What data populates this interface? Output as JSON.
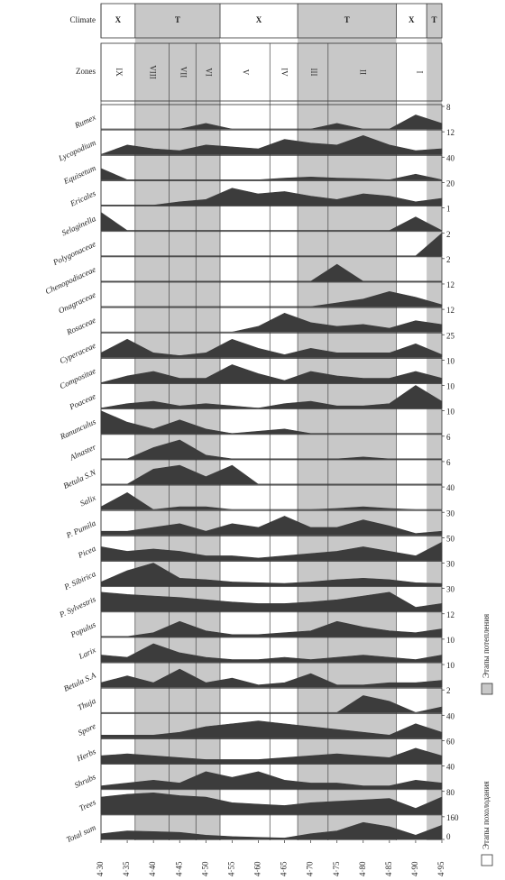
{
  "chart_data": {
    "type": "area",
    "climate_label": "Climate",
    "zones_label": "Zones",
    "x": [
      4.3,
      4.35,
      4.4,
      4.45,
      4.5,
      4.55,
      4.6,
      4.65,
      4.7,
      4.75,
      4.8,
      4.85,
      4.9,
      4.95
    ],
    "xlim": [
      4.3,
      4.95
    ],
    "xticks": [
      {
        "value": 4.3,
        "label": "4·30"
      },
      {
        "value": 4.35,
        "label": "4·35"
      },
      {
        "value": 4.4,
        "label": "4·40"
      },
      {
        "value": 4.45,
        "label": "4·45"
      },
      {
        "value": 4.5,
        "label": "4·50"
      },
      {
        "value": 4.55,
        "label": "4·55"
      },
      {
        "value": 4.6,
        "label": "4·60"
      },
      {
        "value": 4.65,
        "label": "4·65"
      },
      {
        "value": 4.7,
        "label": "4·70"
      },
      {
        "value": 4.75,
        "label": "4·75"
      },
      {
        "value": 4.8,
        "label": "4·80"
      },
      {
        "value": 4.85,
        "label": "4·85"
      },
      {
        "value": 4.9,
        "label": "4·90"
      },
      {
        "value": 4.95,
        "label": "4·95"
      }
    ],
    "area_color": "#3c3c3c",
    "warm_color": "#c8c8c8",
    "climate": [
      {
        "label": "X",
        "start": 4.3,
        "end": 4.365,
        "warm": false
      },
      {
        "label": "T",
        "start": 4.365,
        "end": 4.527,
        "warm": true
      },
      {
        "label": "X",
        "start": 4.527,
        "end": 4.675,
        "warm": false
      },
      {
        "label": "T",
        "start": 4.675,
        "end": 4.863,
        "warm": true
      },
      {
        "label": "X",
        "start": 4.863,
        "end": 4.921,
        "warm": false
      },
      {
        "label": "T",
        "start": 4.921,
        "end": 4.95,
        "warm": true
      }
    ],
    "zones": [
      {
        "label": "IX",
        "start": 4.3,
        "end": 4.365
      },
      {
        "label": "VIII",
        "start": 4.365,
        "end": 4.43
      },
      {
        "label": "VII",
        "start": 4.43,
        "end": 4.481
      },
      {
        "label": "VI",
        "start": 4.481,
        "end": 4.527
      },
      {
        "label": "V",
        "start": 4.527,
        "end": 4.622
      },
      {
        "label": "IV",
        "start": 4.622,
        "end": 4.675
      },
      {
        "label": "III",
        "start": 4.675,
        "end": 4.733
      },
      {
        "label": "II",
        "start": 4.733,
        "end": 4.863
      },
      {
        "label": "I",
        "start": 4.863,
        "end": 4.95
      }
    ],
    "legend": [
      {
        "label": "Этапы похолодания",
        "warm": false
      },
      {
        "label": "Этапы потепления",
        "warm": true
      }
    ],
    "series": [
      {
        "name": "Rumex",
        "ylim": [
          0,
          8
        ],
        "yticks": [
          8
        ],
        "values": [
          0,
          0,
          0,
          0,
          2,
          0,
          0,
          0,
          0,
          2,
          0,
          0,
          5,
          2
        ]
      },
      {
        "name": "Lycopodium",
        "ylim": [
          0,
          12
        ],
        "yticks": [
          12
        ],
        "values": [
          0,
          5,
          3,
          2,
          5,
          4,
          3,
          8,
          6,
          5,
          10,
          5,
          2,
          3
        ]
      },
      {
        "name": "Equisetum",
        "ylim": [
          0,
          40
        ],
        "yticks": [
          40
        ],
        "values": [
          20,
          0,
          0,
          0,
          0,
          0,
          0,
          3,
          5,
          3,
          2,
          0,
          10,
          0
        ]
      },
      {
        "name": "Ericales",
        "ylim": [
          0,
          20
        ],
        "yticks": [
          20
        ],
        "values": [
          0,
          0,
          0,
          3,
          5,
          15,
          10,
          12,
          8,
          5,
          10,
          8,
          3,
          6
        ]
      },
      {
        "name": "Selaginella",
        "ylim": [
          0,
          1
        ],
        "yticks": [
          1
        ],
        "values": [
          0.8,
          0,
          0,
          0,
          0,
          0,
          0,
          0,
          0,
          0,
          0,
          0,
          0.6,
          0
        ]
      },
      {
        "name": "Polygonaceae",
        "ylim": [
          0,
          2
        ],
        "yticks": [
          2
        ],
        "values": [
          0,
          0,
          0,
          0,
          0,
          0,
          0,
          0,
          0,
          0,
          0,
          0,
          0,
          2
        ]
      },
      {
        "name": "Chenopodiaceae",
        "ylim": [
          0,
          2
        ],
        "yticks": [
          2
        ],
        "values": [
          0,
          0,
          0,
          0,
          0,
          0,
          0,
          0,
          0,
          1.5,
          0,
          0,
          0,
          0
        ]
      },
      {
        "name": "Onagraceae",
        "ylim": [
          0,
          12
        ],
        "yticks": [
          12
        ],
        "values": [
          0,
          0,
          0,
          0,
          0,
          0,
          0,
          0,
          0,
          2,
          4,
          8,
          5,
          1
        ]
      },
      {
        "name": "Rosaceae",
        "ylim": [
          0,
          12
        ],
        "yticks": [
          12
        ],
        "values": [
          0,
          0,
          0,
          0,
          0,
          0,
          3,
          10,
          5,
          3,
          4,
          2,
          6,
          4
        ]
      },
      {
        "name": "Cyperaceae",
        "ylim": [
          0,
          25
        ],
        "yticks": [
          25
        ],
        "values": [
          5,
          20,
          5,
          2,
          5,
          20,
          10,
          3,
          10,
          5,
          5,
          5,
          15,
          3
        ]
      },
      {
        "name": "Compositae",
        "ylim": [
          0,
          10
        ],
        "yticks": [
          10
        ],
        "values": [
          0,
          3,
          5,
          2,
          2,
          8,
          4,
          1,
          5,
          3,
          2,
          2,
          5,
          2
        ]
      },
      {
        "name": "Poaceae",
        "ylim": [
          0,
          10
        ],
        "yticks": [
          10
        ],
        "values": [
          0,
          2,
          3,
          1,
          2,
          1,
          0,
          2,
          3,
          1,
          1,
          2,
          10,
          3
        ]
      },
      {
        "name": "Ranunculus",
        "ylim": [
          0,
          10
        ],
        "yticks": [
          10
        ],
        "values": [
          10,
          5,
          2,
          6,
          2,
          0,
          1,
          2,
          0,
          0,
          0,
          0,
          0,
          0
        ]
      },
      {
        "name": "Alnaster",
        "ylim": [
          0,
          6
        ],
        "yticks": [
          6
        ],
        "values": [
          0,
          0,
          3,
          5,
          1,
          0,
          0,
          0,
          0,
          0,
          0.5,
          0,
          0,
          0
        ]
      },
      {
        "name": "Betula S.N",
        "ylim": [
          0,
          6
        ],
        "yticks": [
          6
        ],
        "values": [
          0,
          0,
          4,
          5,
          2,
          5,
          0,
          0,
          0,
          0,
          0,
          0,
          0,
          0
        ]
      },
      {
        "name": "Salix",
        "ylim": [
          0,
          40
        ],
        "yticks": [
          40
        ],
        "values": [
          5,
          30,
          0,
          5,
          5,
          0,
          0,
          0,
          0,
          2,
          5,
          2,
          0,
          0
        ]
      },
      {
        "name": "P. Pumila",
        "ylim": [
          0,
          30
        ],
        "yticks": [
          30
        ],
        "values": [
          5,
          5,
          10,
          15,
          5,
          15,
          10,
          25,
          10,
          10,
          20,
          12,
          2,
          5
        ]
      },
      {
        "name": "Picea",
        "ylim": [
          0,
          50
        ],
        "yticks": [
          50
        ],
        "values": [
          30,
          20,
          25,
          20,
          10,
          10,
          5,
          10,
          15,
          20,
          30,
          20,
          10,
          40
        ]
      },
      {
        "name": "P. Sibirica",
        "ylim": [
          0,
          30
        ],
        "yticks": [
          30
        ],
        "values": [
          5,
          20,
          30,
          10,
          8,
          5,
          4,
          3,
          5,
          8,
          10,
          8,
          4,
          3
        ]
      },
      {
        "name": "P. Sylvestris",
        "ylim": [
          0,
          30
        ],
        "yticks": [
          30
        ],
        "values": [
          25,
          22,
          20,
          18,
          15,
          12,
          10,
          10,
          12,
          15,
          20,
          25,
          5,
          10
        ]
      },
      {
        "name": "Populus",
        "ylim": [
          0,
          12
        ],
        "yticks": [
          12
        ],
        "values": [
          0,
          0,
          2,
          8,
          3,
          1,
          1,
          2,
          3,
          8,
          5,
          3,
          2,
          4
        ]
      },
      {
        "name": "Larix",
        "ylim": [
          0,
          10
        ],
        "yticks": [
          10
        ],
        "values": [
          3,
          2,
          8,
          4,
          2,
          1,
          1,
          2,
          1,
          2,
          3,
          2,
          1,
          3
        ]
      },
      {
        "name": "Betula S.A",
        "ylim": [
          0,
          10
        ],
        "yticks": [
          10
        ],
        "values": [
          2,
          5,
          2,
          8,
          2,
          4,
          1,
          2,
          6,
          1,
          1,
          2,
          2,
          3
        ]
      },
      {
        "name": "Thuja",
        "ylim": [
          0,
          2
        ],
        "yticks": [
          2
        ],
        "values": [
          0,
          0,
          0,
          0,
          0,
          0,
          0,
          0,
          0,
          0,
          1.5,
          1,
          0,
          0.5
        ]
      },
      {
        "name": "Spore",
        "ylim": [
          0,
          40
        ],
        "yticks": [
          40
        ],
        "values": [
          5,
          5,
          5,
          10,
          20,
          25,
          30,
          25,
          20,
          15,
          10,
          5,
          25,
          10
        ]
      },
      {
        "name": "Herbs",
        "ylim": [
          0,
          60
        ],
        "yticks": [
          60
        ],
        "values": [
          20,
          25,
          20,
          15,
          10,
          10,
          10,
          15,
          20,
          25,
          20,
          15,
          40,
          20
        ]
      },
      {
        "name": "Shrubs",
        "ylim": [
          0,
          40
        ],
        "yticks": [
          40
        ],
        "values": [
          5,
          10,
          15,
          10,
          30,
          20,
          30,
          15,
          10,
          10,
          5,
          5,
          15,
          10
        ]
      },
      {
        "name": "Trees",
        "ylim": [
          0,
          80
        ],
        "yticks": [
          80
        ],
        "values": [
          60,
          70,
          75,
          65,
          60,
          40,
          35,
          30,
          40,
          45,
          50,
          55,
          20,
          60
        ]
      },
      {
        "name": "Total sum",
        "ylim": [
          0,
          160
        ],
        "yticks": [
          0,
          160
        ],
        "values": [
          40,
          60,
          55,
          50,
          30,
          20,
          15,
          10,
          40,
          60,
          120,
          90,
          30,
          100
        ]
      }
    ]
  }
}
